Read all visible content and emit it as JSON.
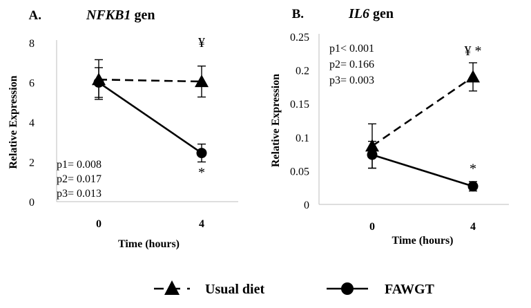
{
  "legend": {
    "entries": [
      {
        "name": "Usual diet",
        "style": "dashed",
        "marker": "triangle"
      },
      {
        "name": "FAWGT",
        "style": "solid",
        "marker": "circle"
      }
    ]
  },
  "chart_data": [
    {
      "type": "line",
      "panel_label": "A.",
      "title_gene": "NFKB1",
      "title_suffix": "gen",
      "xlabel": "Time (hours)",
      "ylabel": "Relative Expression",
      "categories": [
        "0",
        "4"
      ],
      "ylim": [
        0,
        8
      ],
      "yticks": [
        0,
        2,
        4,
        6,
        8
      ],
      "series": [
        {
          "name": "Usual diet",
          "values": [
            6.15,
            6.05
          ],
          "errors": [
            1.0,
            0.78
          ],
          "style": "dashed",
          "marker": "triangle"
        },
        {
          "name": "FAWGT",
          "values": [
            6.0,
            2.45
          ],
          "errors": [
            0.75,
            0.45
          ],
          "style": "solid",
          "marker": "circle"
        }
      ],
      "annotations": [
        {
          "text": "¥",
          "category": "4",
          "y": 7.8
        },
        {
          "text": "*",
          "category": "4",
          "y": 1.25
        }
      ],
      "stats": [
        "p1= 0.008",
        "p2= 0.017",
        "p3= 0.013"
      ]
    },
    {
      "type": "line",
      "panel_label": "B.",
      "title_gene": "IL6",
      "title_suffix": "gen",
      "xlabel": "Time (hours)",
      "ylabel": "Relative Expression",
      "categories": [
        "0",
        "4"
      ],
      "ylim": [
        0,
        0.25
      ],
      "yticks": [
        0,
        0.05,
        0.1,
        0.15,
        0.2,
        0.25
      ],
      "series": [
        {
          "name": "Usual diet",
          "values": [
            0.087,
            0.19
          ],
          "errors": [
            0.033,
            0.021
          ],
          "style": "dashed",
          "marker": "triangle"
        },
        {
          "name": "FAWGT",
          "values": [
            0.074,
            0.027
          ],
          "errors": [
            0.02,
            0.007
          ],
          "style": "solid",
          "marker": "circle"
        }
      ],
      "annotations": [
        {
          "text": "¥ *",
          "category": "4",
          "y": 0.222
        },
        {
          "text": "*",
          "category": "4",
          "y": 0.047
        }
      ],
      "stats": [
        "p1< 0.001",
        "p2= 0.166",
        "p3= 0.003"
      ]
    }
  ]
}
